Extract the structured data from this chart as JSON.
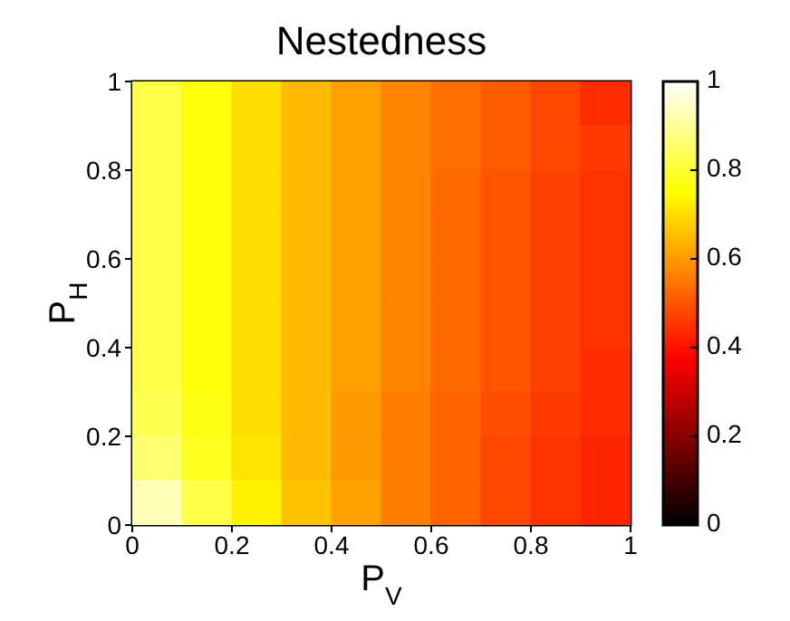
{
  "chart_data": {
    "type": "heatmap",
    "title": "Nestedness",
    "xlabel": "P$_{V}$",
    "ylabel": "P$_{H}$",
    "xlim": [
      0,
      1
    ],
    "xticks": [
      0,
      0.2,
      0.4,
      0.6,
      0.8,
      1
    ],
    "ylim": [
      0,
      1
    ],
    "yticks": [
      0,
      0.2,
      0.4,
      0.6,
      0.8,
      1
    ],
    "clim": [
      0,
      1
    ],
    "cticks": [
      0,
      0.2,
      0.4,
      0.6,
      0.8,
      1
    ],
    "cells": [
      [
        0.82,
        0.76,
        0.7,
        0.65,
        0.61,
        0.57,
        0.54,
        0.51,
        0.48,
        0.44
      ],
      [
        0.82,
        0.76,
        0.7,
        0.65,
        0.61,
        0.57,
        0.54,
        0.51,
        0.48,
        0.46
      ],
      [
        0.82,
        0.76,
        0.7,
        0.65,
        0.61,
        0.57,
        0.53,
        0.5,
        0.47,
        0.45
      ],
      [
        0.82,
        0.76,
        0.7,
        0.65,
        0.61,
        0.57,
        0.53,
        0.5,
        0.47,
        0.45
      ],
      [
        0.82,
        0.76,
        0.7,
        0.65,
        0.61,
        0.57,
        0.53,
        0.5,
        0.47,
        0.45
      ],
      [
        0.82,
        0.76,
        0.7,
        0.65,
        0.61,
        0.57,
        0.53,
        0.5,
        0.47,
        0.45
      ],
      [
        0.82,
        0.76,
        0.7,
        0.65,
        0.61,
        0.57,
        0.53,
        0.5,
        0.47,
        0.44
      ],
      [
        0.83,
        0.77,
        0.7,
        0.65,
        0.6,
        0.56,
        0.52,
        0.49,
        0.46,
        0.44
      ],
      [
        0.86,
        0.78,
        0.71,
        0.65,
        0.6,
        0.56,
        0.52,
        0.48,
        0.45,
        0.43
      ],
      [
        0.93,
        0.82,
        0.73,
        0.66,
        0.61,
        0.56,
        0.52,
        0.48,
        0.45,
        0.43
      ]
    ]
  }
}
